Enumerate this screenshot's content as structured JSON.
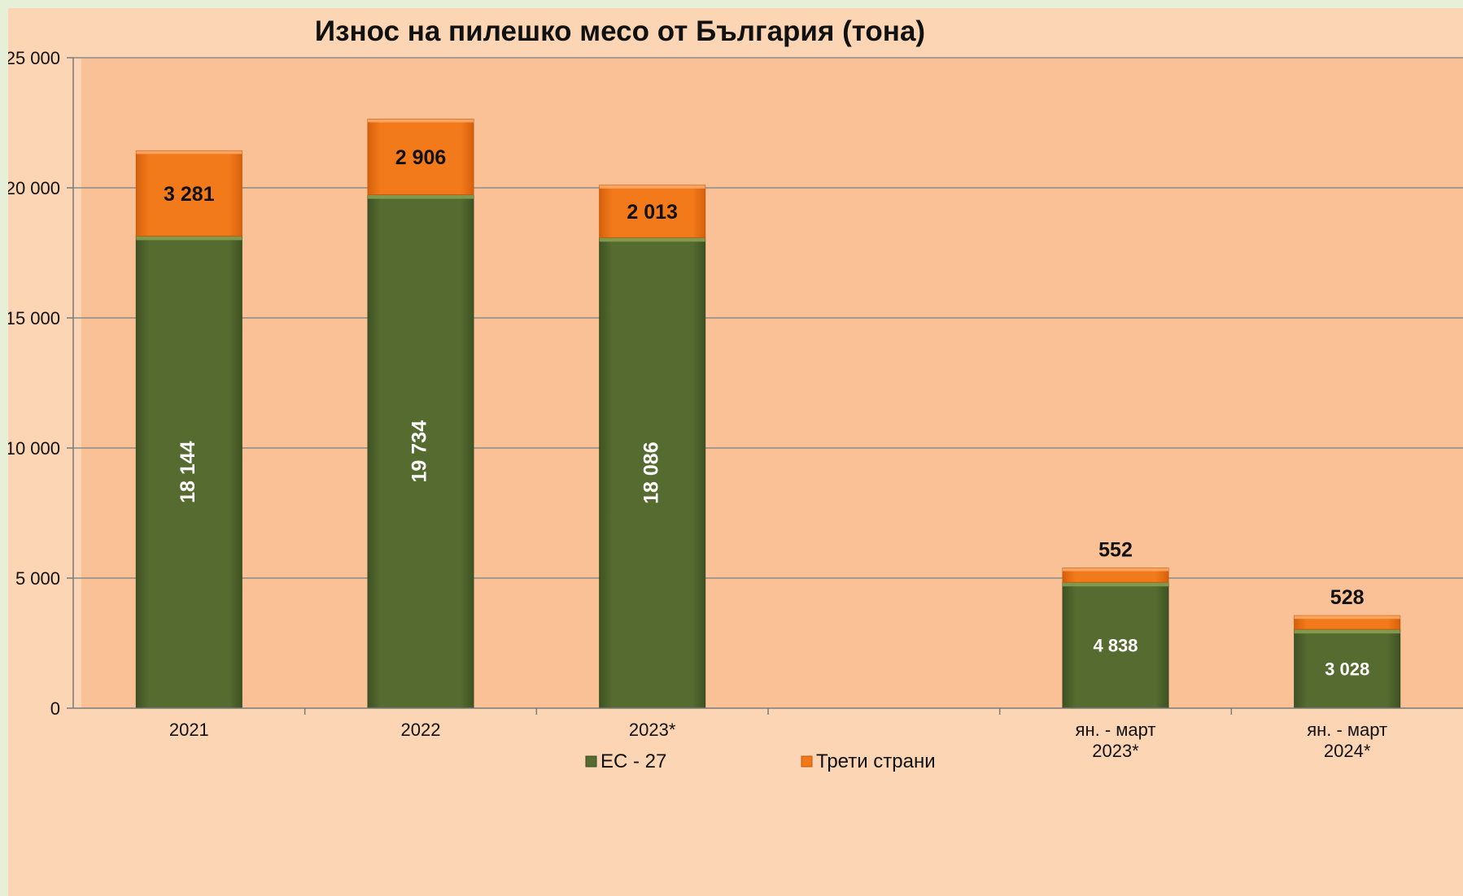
{
  "chart_data": {
    "type": "bar",
    "stacked": true,
    "title": "Износ на пилешко месо от България (тона)",
    "xlabel": "",
    "ylabel": "",
    "ylim": [
      0,
      25000
    ],
    "yticks": [
      0,
      5000,
      10000,
      15000,
      20000,
      25000
    ],
    "ytick_labels": [
      "0",
      "5 000",
      "10 000",
      "15 000",
      "20 000",
      "25 000"
    ],
    "grid": true,
    "legend_position": "bottom",
    "slots": [
      "2021",
      "2022",
      "2023*",
      "",
      "ян. - март 2023*",
      "ян. - март 2024*"
    ],
    "categories": [
      {
        "lines": [
          "2021"
        ],
        "slot": 0
      },
      {
        "lines": [
          "2022"
        ],
        "slot": 1
      },
      {
        "lines": [
          "2023*"
        ],
        "slot": 2
      },
      {
        "lines": [
          "ян. - март",
          "2023*"
        ],
        "slot": 4
      },
      {
        "lines": [
          "ян. - март",
          "2024*"
        ],
        "slot": 5
      }
    ],
    "series": [
      {
        "name": "ЕС - 27",
        "color": "#556b2f",
        "values": [
          18144,
          19734,
          18086,
          4838,
          3028
        ],
        "labels": [
          "18 144",
          "19 734",
          "18 086",
          "4 838",
          "3 028"
        ]
      },
      {
        "name": "Трети страни",
        "color": "#f07818",
        "values": [
          3281,
          2906,
          2013,
          552,
          528
        ],
        "labels": [
          "3 281",
          "2 906",
          "2 013",
          "552",
          "528"
        ]
      }
    ]
  }
}
